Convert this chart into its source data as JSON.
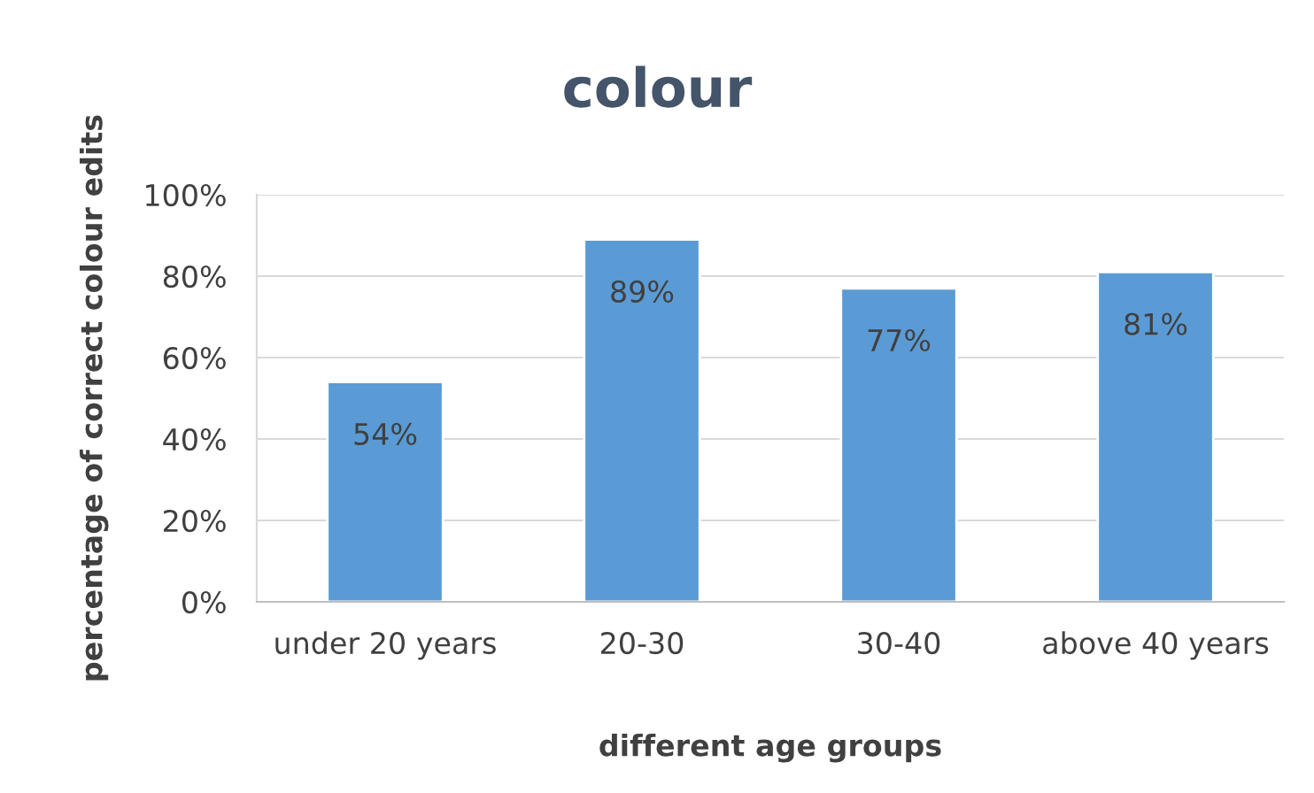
{
  "chart_data": {
    "type": "bar",
    "title": "colour",
    "xlabel": "different age groups",
    "ylabel": "percentage of correct colour edits",
    "categories": [
      "under 20 years",
      "20-30",
      "30-40",
      "above 40 years"
    ],
    "values": [
      54,
      89,
      77,
      81
    ],
    "value_labels": [
      "54%",
      "89%",
      "77%",
      "81%"
    ],
    "color": "#5b9bd5",
    "ylim": [
      0,
      100
    ],
    "yticks": [
      {
        "value": 0,
        "label": "0%"
      },
      {
        "value": 20,
        "label": "20%"
      },
      {
        "value": 40,
        "label": "40%"
      },
      {
        "value": 60,
        "label": "60%"
      },
      {
        "value": 80,
        "label": "80%"
      },
      {
        "value": 100,
        "label": "100%"
      }
    ],
    "grid": "y",
    "legend": false
  }
}
